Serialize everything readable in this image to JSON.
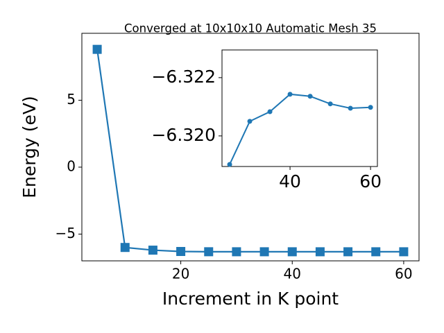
{
  "chart_data": [
    {
      "type": "line",
      "title": "Converged at 10x10x10 Automatic Mesh 35",
      "x_label": "Increment in K point",
      "y_label": "Energy (eV)",
      "x": [
        5,
        10,
        15,
        20,
        25,
        30,
        35,
        40,
        45,
        50,
        55,
        60
      ],
      "series": [
        {
          "name": "Energy",
          "color": "#1f77b4",
          "marker": "square",
          "values": [
            8.8,
            -6.0,
            -6.2,
            -6.3,
            -6.319,
            -6.3205,
            -6.3208,
            -6.3214,
            -6.3214,
            -6.3211,
            -6.321,
            -6.321
          ]
        }
      ],
      "xlim": [
        2.25,
        62.75
      ],
      "ylim": [
        -7.0,
        10.0
      ],
      "xticks": [
        20,
        40,
        60
      ],
      "yticks": [
        {
          "value": -5,
          "label": "−5"
        },
        0,
        5
      ]
    },
    {
      "type": "line",
      "x": [
        25,
        30,
        35,
        40,
        45,
        50,
        55,
        60
      ],
      "series": [
        {
          "name": "Energy",
          "color": "#1f77b4",
          "marker": "circle",
          "values": [
            -6.31902,
            -6.3205,
            -6.32083,
            -6.32143,
            -6.32136,
            -6.3211,
            -6.32095,
            -6.32098
          ]
        }
      ],
      "xlim": [
        23.1,
        61.7
      ],
      "ylim": [
        -6.31895,
        -6.32295
      ],
      "xticks": [
        40,
        60
      ],
      "yticks": [
        {
          "value": -6.322,
          "label": "−6.322"
        },
        {
          "value": -6.32,
          "label": "−6.320"
        }
      ]
    }
  ]
}
